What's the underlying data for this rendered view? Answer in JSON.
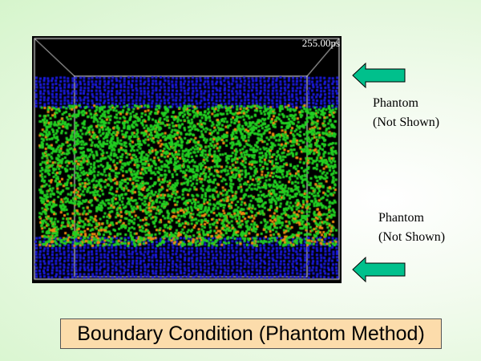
{
  "simulation": {
    "time_label": "255.00ps",
    "colors": {
      "wall": "#1a1ae0",
      "liquid": "#22d022",
      "solute": "#f08a10"
    }
  },
  "annotations": [
    {
      "line1": "Phantom",
      "line2": "(Not Shown)"
    },
    {
      "line1": "Phantom",
      "line2": "(Not Shown)"
    }
  ],
  "arrow_color": "#00c08c",
  "caption": "Boundary Condition (Phantom Method)"
}
